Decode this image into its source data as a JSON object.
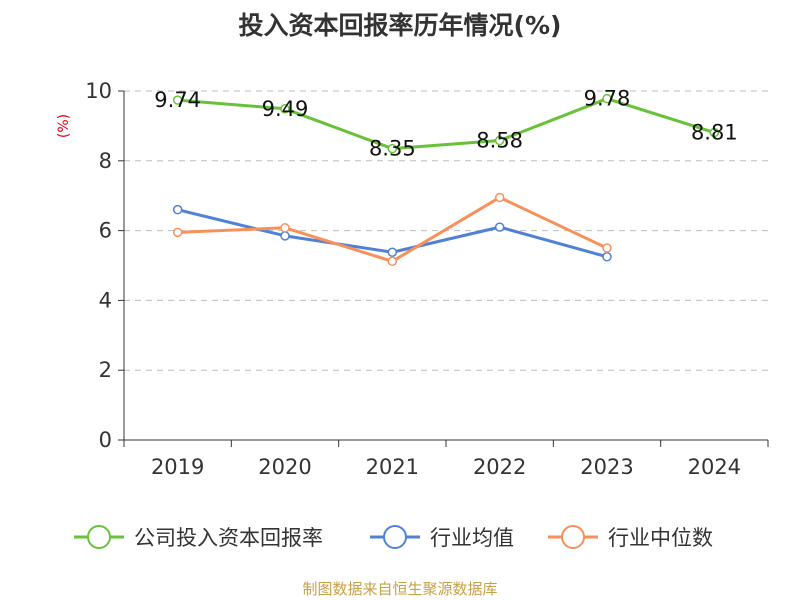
{
  "chart_data": {
    "type": "line",
    "title": "投入资本回报率历年情况(%)",
    "ylabel": "(%)",
    "xlabel": "",
    "categories": [
      "2019",
      "2020",
      "2021",
      "2022",
      "2023",
      "2024"
    ],
    "ylim": [
      0,
      10
    ],
    "yticks": [
      0,
      2,
      4,
      6,
      8,
      10
    ],
    "grid": true,
    "series": [
      {
        "name": "公司投入资本回报率",
        "color": "#67c23a",
        "values": [
          9.74,
          9.49,
          8.35,
          8.58,
          9.78,
          8.81
        ],
        "labels": [
          "9.74",
          "9.49",
          "8.35",
          "8.58",
          "9.78",
          "8.81"
        ]
      },
      {
        "name": "行业均值",
        "color": "#4f81d6",
        "values": [
          6.6,
          5.85,
          5.38,
          6.1,
          5.25,
          null
        ]
      },
      {
        "name": "行业中位数",
        "color": "#f7905a",
        "values": [
          5.95,
          6.08,
          5.12,
          6.95,
          5.5,
          null
        ]
      }
    ],
    "legend_position": "bottom",
    "source": "制图数据来自恒生聚源数据库"
  }
}
